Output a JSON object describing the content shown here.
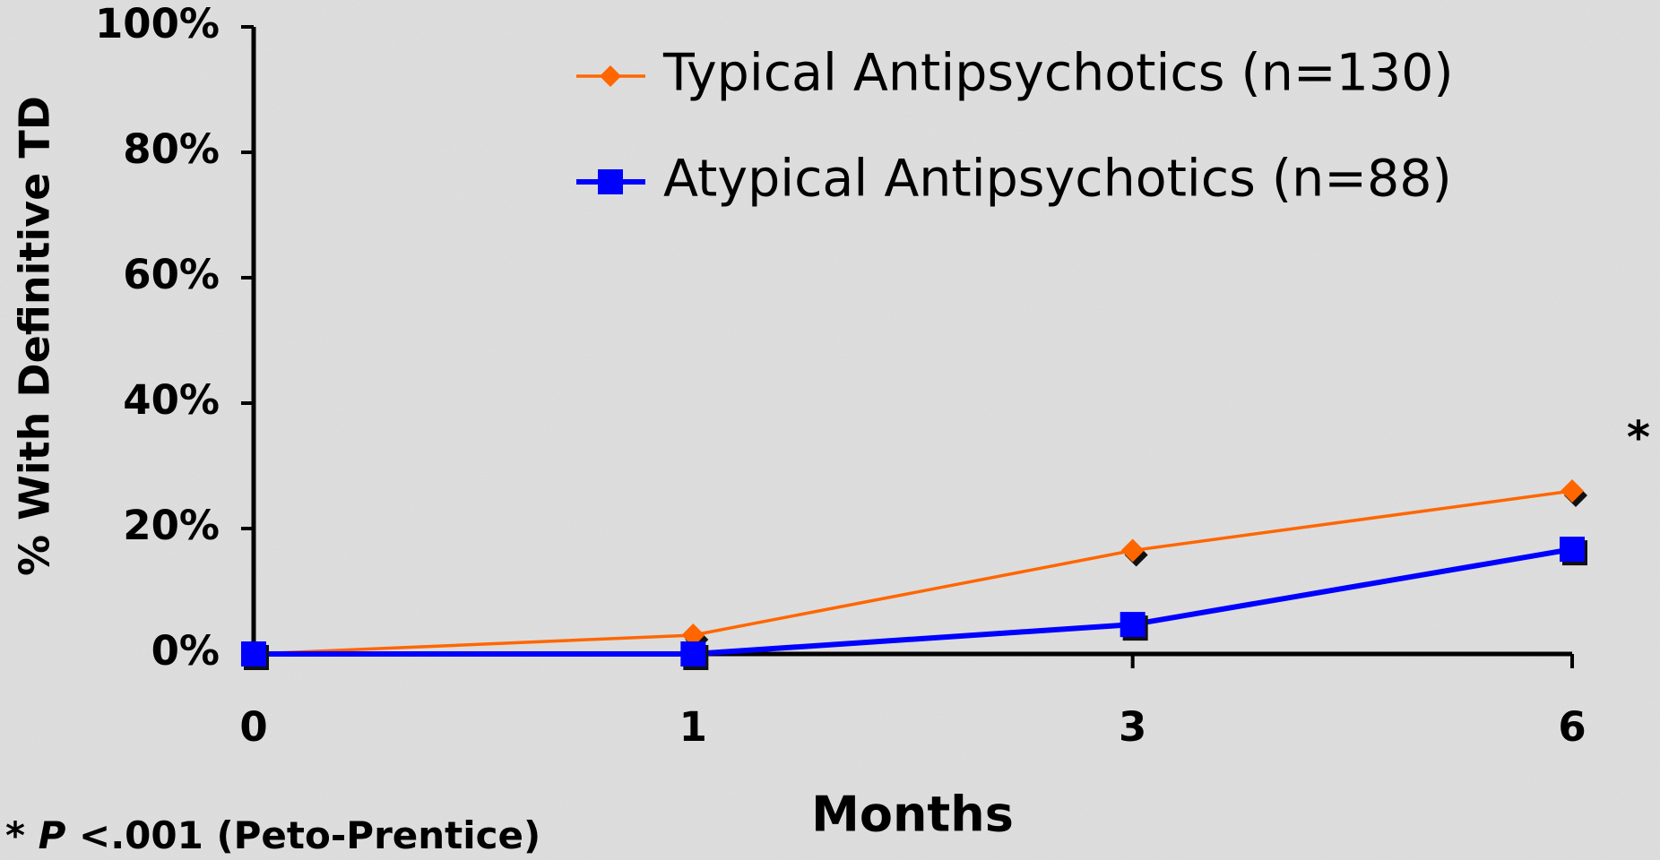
{
  "chart_data": {
    "type": "line",
    "x_label": "Months",
    "y_label": "% With Definitive TD",
    "categories": [
      "0",
      "1",
      "3",
      "6"
    ],
    "series": [
      {
        "name": "Typical Antipsychotics (n=130)",
        "color": "#ff6600",
        "marker": "diamond",
        "values": [
          0,
          3,
          16.5,
          26
        ]
      },
      {
        "name": "Atypical Antipsychotics (n=88)",
        "color": "#0000ff",
        "marker": "square",
        "values": [
          0,
          0,
          4.7,
          16.7
        ]
      }
    ],
    "ylim": [
      0,
      100
    ],
    "yticks": [
      {
        "value": 0,
        "label": "0%"
      },
      {
        "value": 20,
        "label": "20%"
      },
      {
        "value": 40,
        "label": "40%"
      },
      {
        "value": 60,
        "label": "60%"
      },
      {
        "value": 80,
        "label": "80%"
      },
      {
        "value": 100,
        "label": "100%"
      }
    ],
    "grid": false,
    "legend": "top",
    "annotations": {
      "significance_marker": "*",
      "footnote": {
        "marker": "*",
        "p": "P",
        "text": "<.001 (Peto-Prentice)"
      }
    }
  }
}
